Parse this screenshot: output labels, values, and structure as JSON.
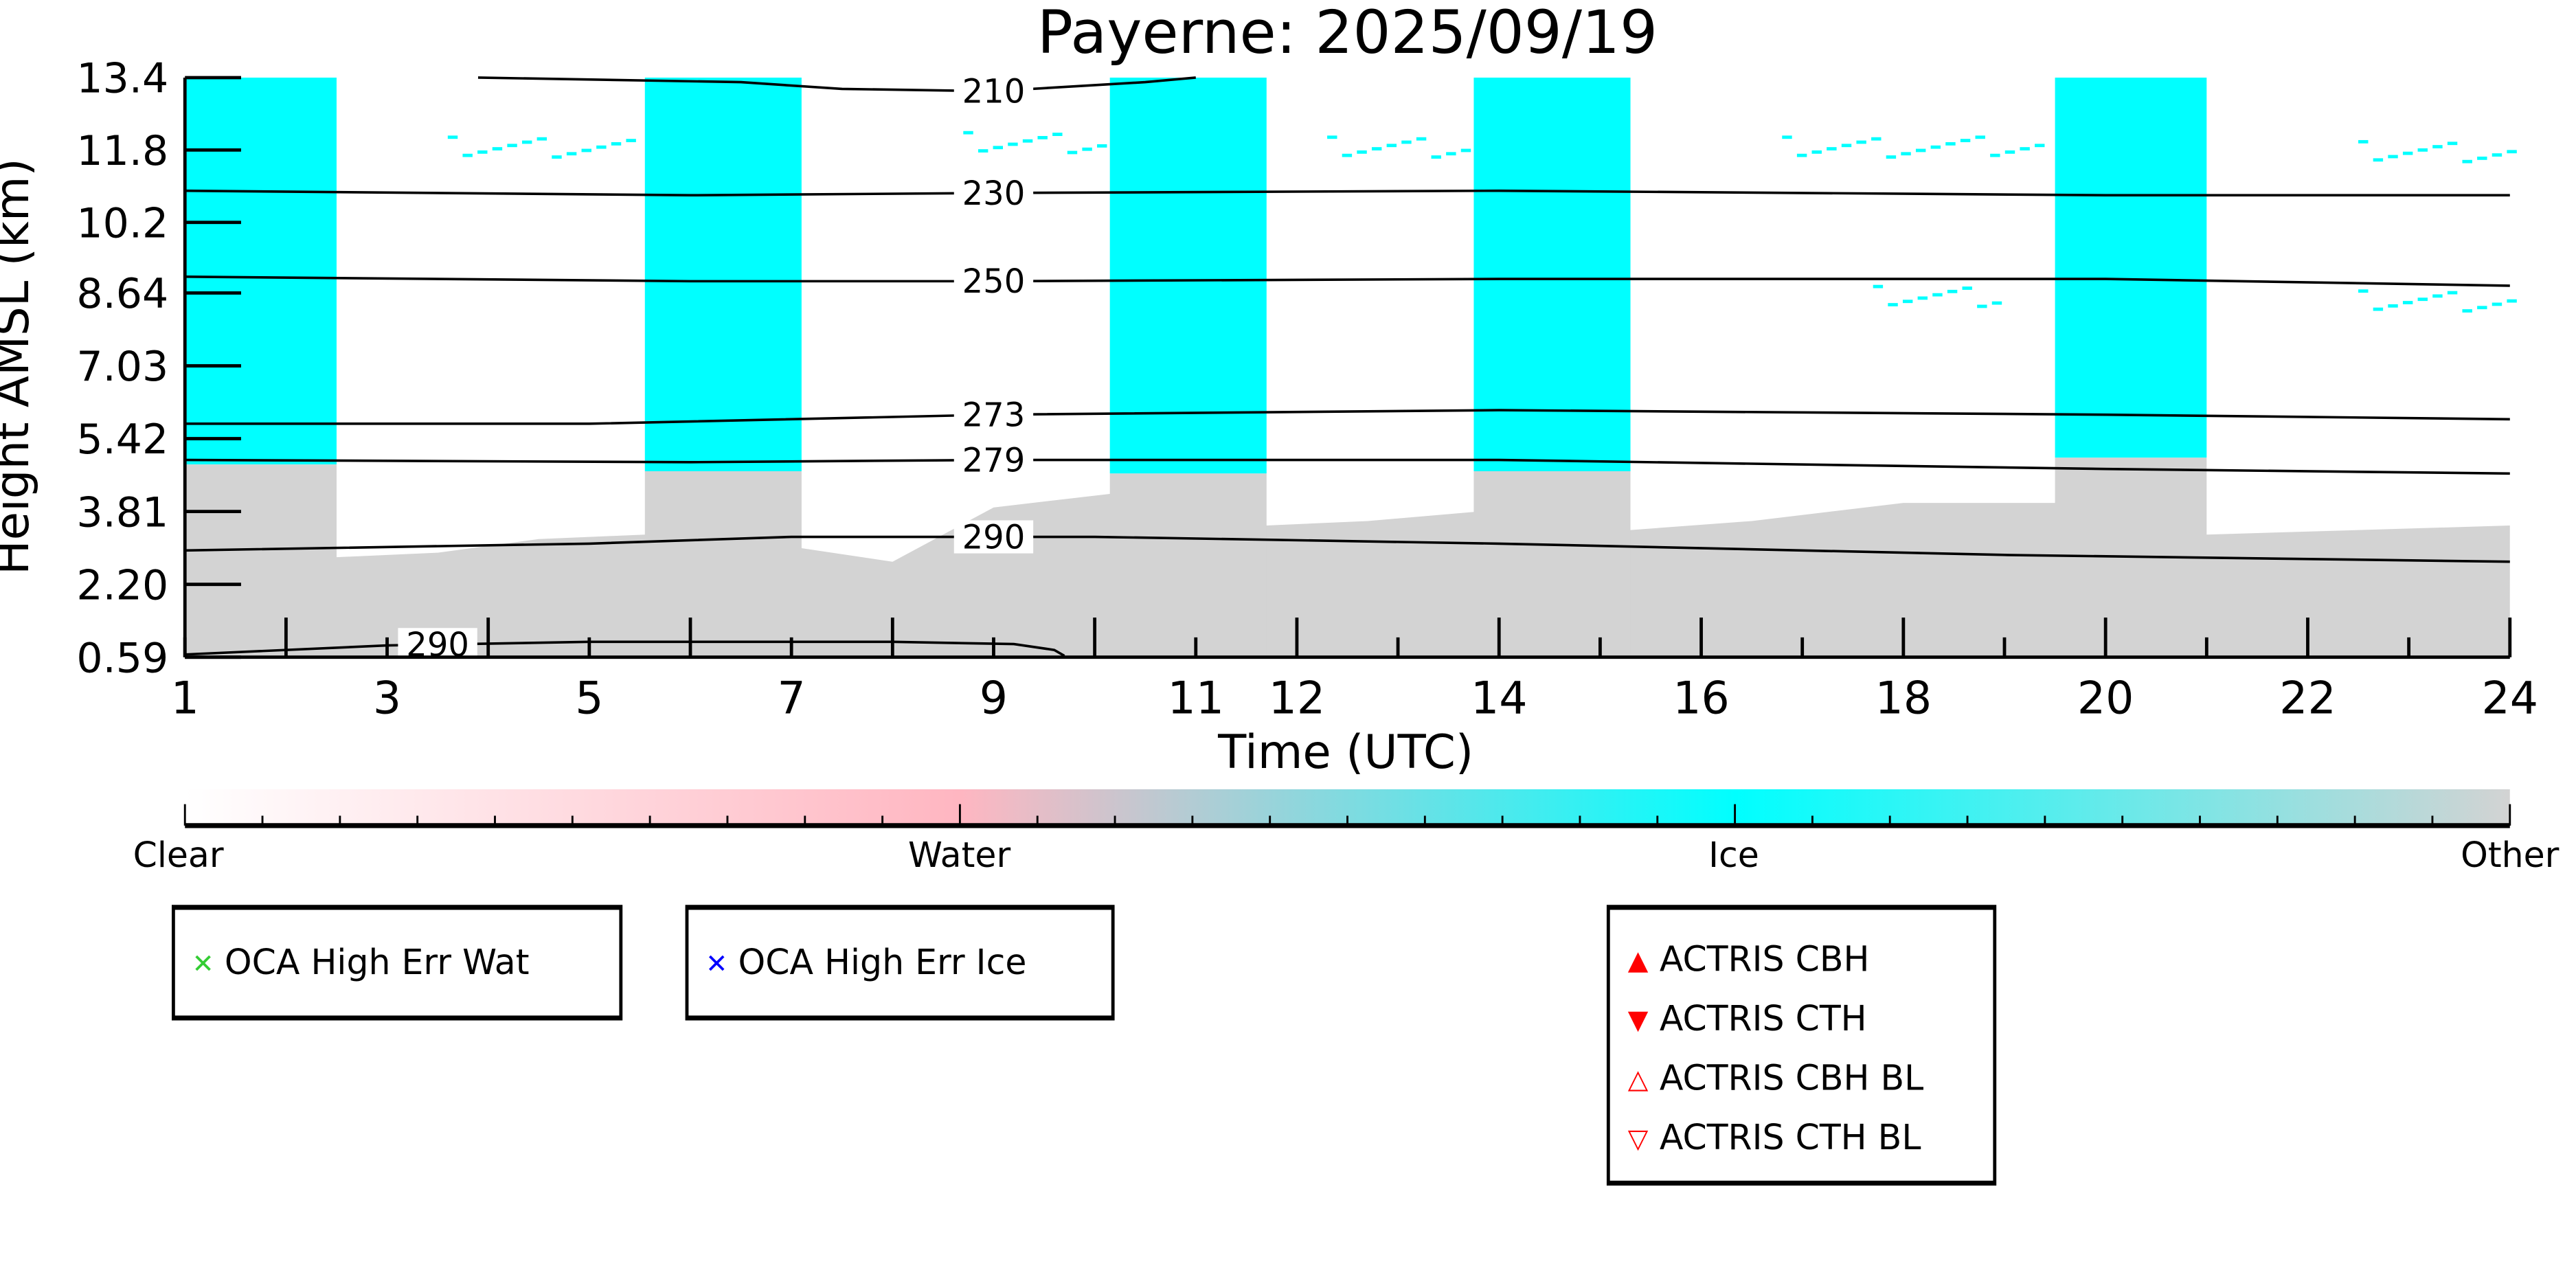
{
  "chart_data": {
    "type": "heatmap",
    "title": "Payerne: 2025/09/19",
    "xlabel": "Time (UTC)",
    "ylabel": "Height AMSL (km)",
    "xlim": [
      1,
      24
    ],
    "ylim": [
      0.59,
      13.4
    ],
    "xticks": [
      1,
      3,
      5,
      7,
      9,
      11,
      12,
      14,
      16,
      18,
      20,
      22,
      24
    ],
    "xtick_labels": [
      "1",
      "3",
      "5",
      "7",
      "9",
      "11",
      "12",
      "14",
      "16",
      "18",
      "20",
      "22",
      "24"
    ],
    "yticks": [
      0.59,
      2.2,
      3.81,
      5.42,
      7.03,
      8.64,
      10.2,
      11.8,
      13.4
    ],
    "ytick_labels": [
      "0.59",
      "2.20",
      "3.81",
      "5.42",
      "7.03",
      "8.64",
      "10.2",
      "11.8",
      "13.4"
    ],
    "classes": {
      "Clear": "#ffffff",
      "Water": "#ffb6c1",
      "Ice": "#00ffff",
      "Other": "#d3d3d3"
    },
    "ice_columns": [
      {
        "start": 1.0,
        "end": 2.5,
        "ice_base": 4.85
      },
      {
        "start": 5.55,
        "end": 7.1,
        "ice_base": 4.7
      },
      {
        "start": 10.15,
        "end": 11.7,
        "ice_base": 4.65
      },
      {
        "start": 13.75,
        "end": 15.3,
        "ice_base": 4.7
      },
      {
        "start": 19.5,
        "end": 21.0,
        "ice_base": 5.0
      }
    ],
    "other_top": [
      {
        "t": 1.0,
        "h": 4.85
      },
      {
        "t": 2.5,
        "h": 2.8
      },
      {
        "t": 3.5,
        "h": 2.9
      },
      {
        "t": 4.5,
        "h": 3.2
      },
      {
        "t": 5.55,
        "h": 3.3
      },
      {
        "t": 7.1,
        "h": 3.0
      },
      {
        "t": 8.0,
        "h": 2.7
      },
      {
        "t": 9.0,
        "h": 3.9
      },
      {
        "t": 10.15,
        "h": 4.2
      },
      {
        "t": 11.7,
        "h": 3.5
      },
      {
        "t": 12.7,
        "h": 3.6
      },
      {
        "t": 13.75,
        "h": 3.8
      },
      {
        "t": 15.3,
        "h": 3.4
      },
      {
        "t": 16.5,
        "h": 3.6
      },
      {
        "t": 18.0,
        "h": 4.0
      },
      {
        "t": 19.5,
        "h": 4.0
      },
      {
        "t": 21.0,
        "h": 3.3
      },
      {
        "t": 22.5,
        "h": 3.4
      },
      {
        "t": 24.0,
        "h": 3.5
      }
    ],
    "cirrus_patches": [
      {
        "start": 3.6,
        "end": 5.5,
        "h": 11.9
      },
      {
        "start": 8.7,
        "end": 10.1,
        "h": 12.0
      },
      {
        "start": 12.3,
        "end": 13.7,
        "h": 11.9
      },
      {
        "start": 16.8,
        "end": 19.4,
        "h": 11.9
      },
      {
        "start": 22.5,
        "end": 24.0,
        "h": 11.8
      },
      {
        "start": 17.7,
        "end": 19.0,
        "h": 8.6
      },
      {
        "start": 22.5,
        "end": 24.0,
        "h": 8.5
      }
    ],
    "contours": [
      {
        "label": "210",
        "label_t": 9.0,
        "points": [
          [
            3.9,
            13.4
          ],
          [
            6.5,
            13.3
          ],
          [
            7.5,
            13.15
          ],
          [
            9.0,
            13.1
          ],
          [
            10.5,
            13.3
          ],
          [
            11.0,
            13.4
          ]
        ]
      },
      {
        "label": "230",
        "label_t": 9.0,
        "points": [
          [
            1,
            10.9
          ],
          [
            6,
            10.8
          ],
          [
            9,
            10.85
          ],
          [
            14,
            10.9
          ],
          [
            20,
            10.8
          ],
          [
            24,
            10.8
          ]
        ]
      },
      {
        "label": "250",
        "label_t": 9.0,
        "points": [
          [
            1,
            9.0
          ],
          [
            6,
            8.9
          ],
          [
            9,
            8.9
          ],
          [
            14,
            8.95
          ],
          [
            20,
            8.95
          ],
          [
            24,
            8.8
          ]
        ]
      },
      {
        "label": "273",
        "label_t": 9.0,
        "points": [
          [
            1,
            5.75
          ],
          [
            5,
            5.75
          ],
          [
            9,
            5.95
          ],
          [
            14,
            6.05
          ],
          [
            20,
            5.95
          ],
          [
            24,
            5.85
          ]
        ]
      },
      {
        "label": "279",
        "label_t": 9.0,
        "points": [
          [
            1,
            4.95
          ],
          [
            6,
            4.9
          ],
          [
            9,
            4.95
          ],
          [
            14,
            4.95
          ],
          [
            20,
            4.75
          ],
          [
            24,
            4.65
          ]
        ]
      },
      {
        "label": "290",
        "label_t": 9.0,
        "points": [
          [
            1,
            2.95
          ],
          [
            5,
            3.1
          ],
          [
            7,
            3.25
          ],
          [
            10,
            3.25
          ],
          [
            14,
            3.1
          ],
          [
            19,
            2.85
          ],
          [
            24,
            2.7
          ]
        ]
      },
      {
        "label": "290",
        "label_t": 3.5,
        "points": [
          [
            1,
            0.65
          ],
          [
            3,
            0.85
          ],
          [
            5,
            0.93
          ],
          [
            8,
            0.93
          ],
          [
            9.2,
            0.88
          ],
          [
            9.6,
            0.75
          ],
          [
            9.7,
            0.62
          ]
        ]
      }
    ],
    "colorbar": {
      "labels": [
        "Clear",
        "Water",
        "Ice",
        "Other"
      ],
      "colors": [
        "#ffffff",
        "#ffb6c1",
        "#00ffff",
        "#d3d3d3"
      ]
    },
    "legends": [
      {
        "items": [
          {
            "label": "OCA High Err Wat",
            "marker": "x",
            "color": "#33cc33"
          }
        ]
      },
      {
        "items": [
          {
            "label": "OCA High Err Ice",
            "marker": "x",
            "color": "#0000ff"
          }
        ]
      },
      {
        "items": [
          {
            "label": "ACTRIS CBH",
            "marker": "triangle-up-filled",
            "color": "#ff0000"
          },
          {
            "label": "ACTRIS CTH",
            "marker": "triangle-down-filled",
            "color": "#ff0000"
          },
          {
            "label": "ACTRIS CBH BL",
            "marker": "triangle-up-open",
            "color": "#ff0000"
          },
          {
            "label": "ACTRIS CTH BL",
            "marker": "triangle-down-open",
            "color": "#ff0000"
          }
        ]
      }
    ]
  }
}
